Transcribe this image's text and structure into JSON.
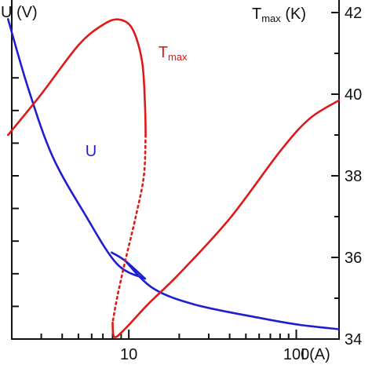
{
  "chart_data": {
    "type": "line",
    "title": "",
    "xscale": "log",
    "xlim": [
      2,
      180
    ],
    "x_ticks": [
      {
        "value": 10,
        "label": "10"
      },
      {
        "value": 100,
        "label": "100"
      }
    ],
    "xlabel": "I (A)",
    "y_left": {
      "label": "U (V)",
      "ylim": [
        0,
        1
      ],
      "tick_labels": []
    },
    "y_right": {
      "label_main": "T",
      "label_sub": "max",
      "label_unit": " (K)",
      "ylim": [
        3400,
        4200
      ],
      "tick_labels": [
        "34",
        "36",
        "38",
        "40",
        "42"
      ],
      "tick_values": [
        3400,
        3600,
        3800,
        4000,
        4200
      ]
    },
    "colors": {
      "U": "#1f1fd0",
      "T": "#e01818"
    },
    "series": [
      {
        "name": "U",
        "axis": "left",
        "color": "#1f1fd0",
        "segments": [
          {
            "style": "solid",
            "x": [
              1.9,
              2.5,
              3.5,
              5.5,
              8.5,
              12.5
            ],
            "y": [
              0.98,
              0.77,
              0.56,
              0.38,
              0.23,
              0.185
            ]
          },
          {
            "style": "solid",
            "x": [
              7.9,
              9.5,
              12.5
            ],
            "y": [
              0.265,
              0.24,
              0.185
            ]
          },
          {
            "style": "solid",
            "x": [
              9.5,
              14,
              25,
              60,
              100,
              180
            ],
            "y": [
              0.24,
              0.155,
              0.105,
              0.065,
              0.045,
              0.03
            ]
          }
        ]
      },
      {
        "name": "T",
        "sub": "max",
        "axis": "right",
        "color": "#e01818",
        "segments": [
          {
            "style": "solid",
            "x": [
              1.9,
              3.0,
              5.0,
              7.0,
              8.7,
              10.5,
              12.0,
              12.5,
              12.6
            ],
            "y": [
              3900,
              4000,
              4120,
              4170,
              4183,
              4160,
              4080,
              3970,
              3900
            ]
          },
          {
            "style": "dotted",
            "x": [
              12.6,
              12.3,
              11.0,
              9.5,
              8.5,
              8.0
            ],
            "y": [
              3900,
              3800,
              3700,
              3590,
              3500,
              3440
            ]
          },
          {
            "style": "solid",
            "x": [
              8.0,
              8.2,
              9.5,
              13,
              20,
              40,
              80,
              120,
              180
            ],
            "y": [
              3440,
              3405,
              3425,
              3485,
              3560,
              3695,
              3860,
              3940,
              3985
            ]
          }
        ]
      }
    ],
    "annotations": [
      {
        "text": "U",
        "x": 5.5,
        "y": 0.56,
        "color": "#1f1fd0"
      },
      {
        "text": "T",
        "sub": "max",
        "x": 15,
        "y": 4090,
        "color": "#e01818"
      }
    ]
  }
}
